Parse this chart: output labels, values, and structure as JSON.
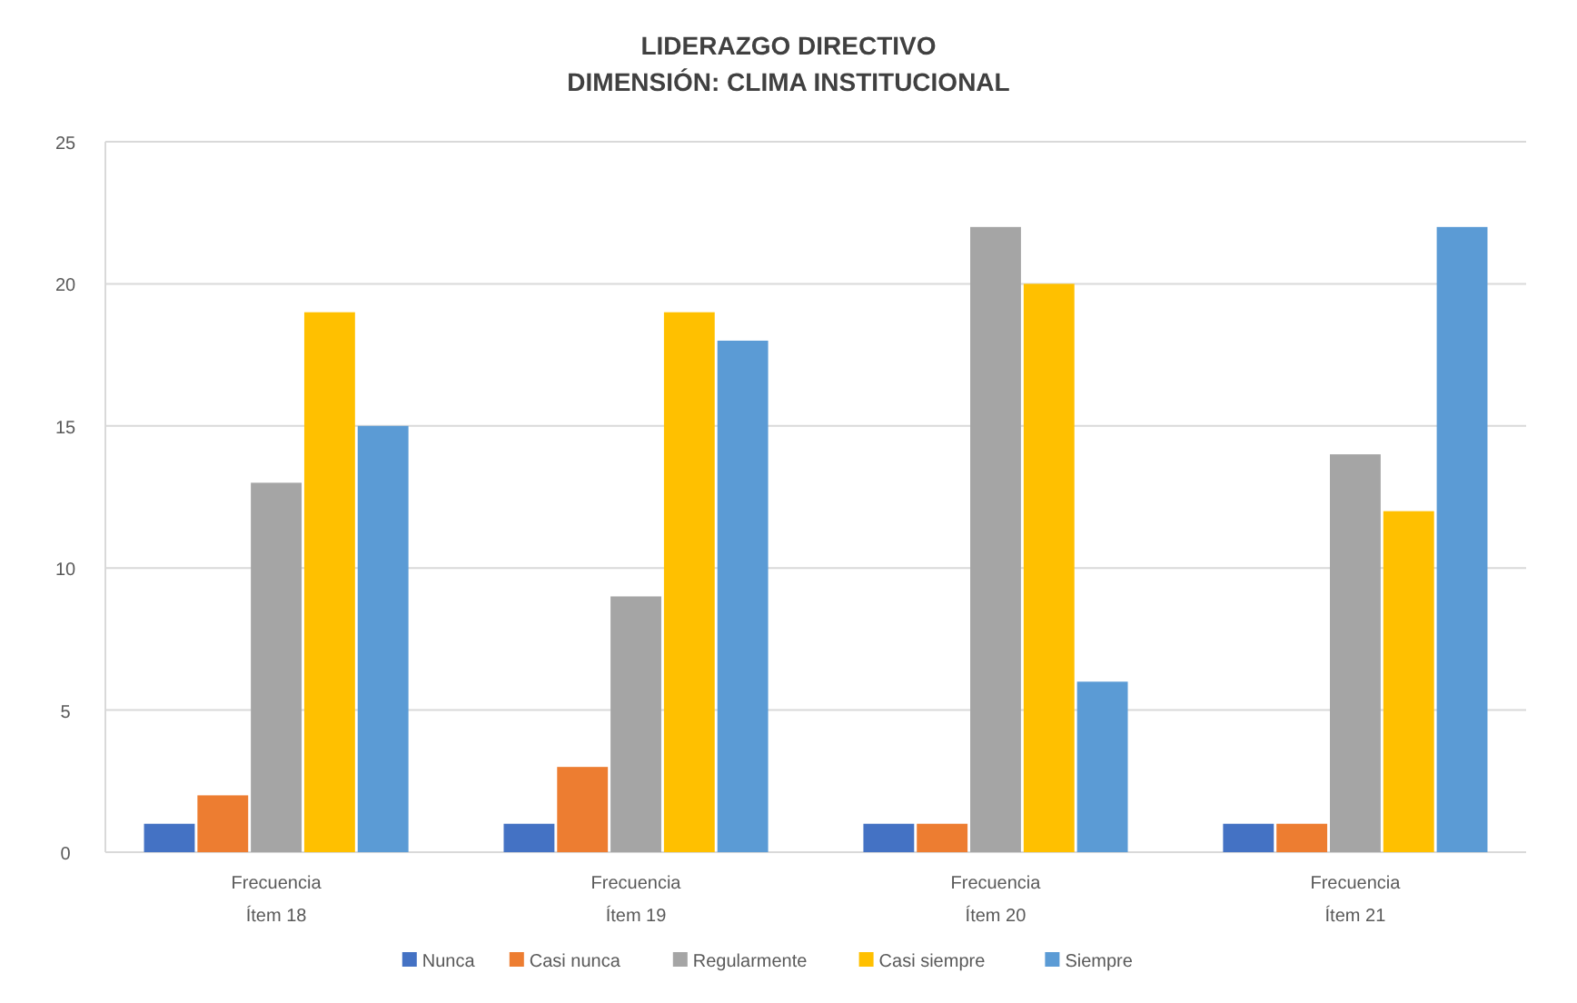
{
  "chart_data": {
    "type": "bar",
    "title": "LIDERAZGO DIRECTIVO",
    "subtitle": "DIMENSIÓN: CLIMA INSTITUCIONAL",
    "categories": [
      "Frecuencia\nÍtem 18",
      "Frecuencia\nÍtem 19",
      "Frecuencia\nÍtem 20",
      "Frecuencia\nÍtem 21"
    ],
    "series": [
      {
        "name": "Nunca",
        "color": "#4472c4",
        "values": [
          1,
          1,
          1,
          1
        ]
      },
      {
        "name": "Casi nunca",
        "color": "#ed7d31",
        "values": [
          2,
          3,
          1,
          1
        ]
      },
      {
        "name": "Regularmente",
        "color": "#a5a5a5",
        "values": [
          13,
          9,
          22,
          14
        ]
      },
      {
        "name": "Casi siempre",
        "color": "#ffc000",
        "values": [
          19,
          19,
          20,
          12
        ]
      },
      {
        "name": "Siempre",
        "color": "#5b9bd5",
        "values": [
          15,
          18,
          6,
          22
        ]
      }
    ],
    "ylim": [
      0,
      25
    ],
    "yticks": [
      0,
      5,
      10,
      15,
      20,
      25
    ],
    "grid": "y",
    "legend": "bottom"
  }
}
